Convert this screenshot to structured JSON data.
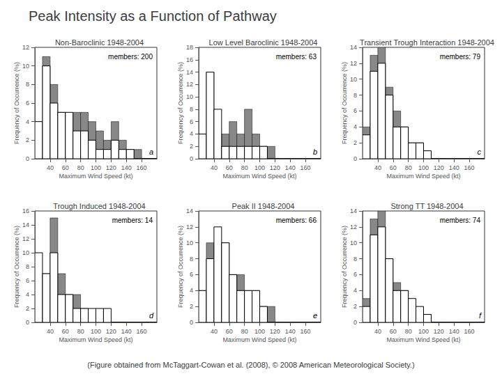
{
  "title": "Peak Intensity as a Function of Pathway",
  "caption": "(Figure obtained from McTaggart-Cowan et al. (2008), © 2008 American Meteorological Society.)",
  "chart_data": [
    {
      "type": "histogram",
      "subtitle": "Non-Baroclinic 1948-2004",
      "annotations": [
        "members: 200",
        "a"
      ],
      "xlabel": "Maximum Wind Speed (kt)",
      "ylabel": "Frequency of Occurrence (%)",
      "bins": [
        20,
        30,
        40,
        50,
        60,
        70,
        80,
        90,
        100,
        110,
        120,
        130,
        140,
        150,
        160,
        170,
        180
      ],
      "series": [
        {
          "color": "#888888",
          "values": [
            3,
            11,
            8,
            5,
            4,
            5,
            5,
            4,
            3,
            2,
            4,
            2,
            1,
            1,
            0,
            0
          ]
        },
        {
          "color": "#ffffff",
          "values": [
            4,
            10,
            6,
            5,
            5,
            3,
            3,
            2,
            1,
            1,
            2,
            1,
            1,
            0,
            0,
            0
          ]
        }
      ],
      "xlim": [
        20,
        180
      ],
      "xticks": [
        40,
        60,
        80,
        100,
        120,
        140,
        160
      ],
      "ylim": [
        0,
        12
      ],
      "yticks": [
        0,
        2,
        4,
        6,
        8,
        10,
        12
      ],
      "grid": false
    },
    {
      "type": "histogram",
      "subtitle": "Low Level Baroclinic 1948-2004",
      "annotations": [
        "members: 63",
        "b"
      ],
      "xlabel": "Maximum Wind Speed (kt)",
      "ylabel": "Frequency of Occurrence (%)",
      "bins": [
        20,
        30,
        40,
        50,
        60,
        70,
        80,
        90,
        100,
        110,
        120,
        130,
        140,
        150,
        160,
        170,
        180
      ],
      "series": [
        {
          "color": "#888888",
          "values": [
            3,
            14,
            4,
            4,
            6,
            4,
            8,
            4,
            2,
            2,
            0,
            0,
            0,
            0,
            0,
            0
          ]
        },
        {
          "color": "#ffffff",
          "values": [
            4,
            14,
            8,
            2,
            2,
            2,
            2,
            2,
            2,
            0,
            0,
            0,
            0,
            0,
            0,
            0
          ]
        }
      ],
      "xlim": [
        20,
        180
      ],
      "xticks": [
        40,
        60,
        80,
        100,
        120,
        140,
        160
      ],
      "ylim": [
        0,
        18
      ],
      "yticks": [
        0,
        2,
        4,
        6,
        8,
        10,
        12,
        14,
        16,
        18
      ],
      "grid": false
    },
    {
      "type": "histogram",
      "subtitle": "Transient Trough Interaction 1948-2004",
      "annotations": [
        "members: 79",
        "c"
      ],
      "xlabel": "Maximum Wind Speed (kt)",
      "ylabel": "Frequency of Occurrence (%)",
      "bins": [
        20,
        30,
        40,
        50,
        60,
        70,
        80,
        90,
        100,
        110,
        120,
        130,
        140,
        150,
        160,
        170,
        180
      ],
      "series": [
        {
          "color": "#888888",
          "values": [
            4,
            13,
            14,
            9,
            6,
            4,
            2,
            2,
            1,
            0,
            0,
            0,
            0,
            0,
            0,
            0
          ]
        },
        {
          "color": "#ffffff",
          "values": [
            3,
            11,
            12,
            8,
            4,
            4,
            2,
            2,
            1,
            0,
            0,
            0,
            0,
            0,
            0,
            0
          ]
        }
      ],
      "xlim": [
        20,
        180
      ],
      "xticks": [
        40,
        60,
        80,
        100,
        120,
        140,
        160
      ],
      "ylim": [
        0,
        14
      ],
      "yticks": [
        0,
        2,
        4,
        6,
        8,
        10,
        12,
        14
      ],
      "grid": false
    },
    {
      "type": "histogram",
      "subtitle": "Trough Induced 1948-2004",
      "annotations": [
        "members: 14",
        "d"
      ],
      "xlabel": "Maximum Wind Speed (kt)",
      "ylabel": "Frequency of Occurrence (%)",
      "bins": [
        20,
        30,
        40,
        50,
        60,
        70,
        80,
        90,
        100,
        110,
        120,
        130,
        140,
        150,
        160,
        170,
        180
      ],
      "series": [
        {
          "color": "#888888",
          "values": [
            6,
            7,
            15,
            7,
            4,
            4,
            2,
            0,
            0,
            0,
            0,
            0,
            0,
            0,
            0,
            0
          ]
        },
        {
          "color": "#ffffff",
          "values": [
            10,
            7,
            10,
            4,
            4,
            2,
            2,
            2,
            2,
            2,
            0,
            0,
            0,
            0,
            0,
            0
          ]
        }
      ],
      "xlim": [
        20,
        180
      ],
      "xticks": [
        40,
        60,
        80,
        100,
        120,
        140,
        160
      ],
      "ylim": [
        0,
        16
      ],
      "yticks": [
        0,
        2,
        4,
        6,
        8,
        10,
        12,
        14,
        16
      ],
      "grid": false
    },
    {
      "type": "histogram",
      "subtitle": "Peak II 1948-2004",
      "annotations": [
        "members: 66",
        "e"
      ],
      "xlabel": "Maximum Wind Speed (kt)",
      "ylabel": "Frequency of Occurrence (%)",
      "bins": [
        20,
        30,
        40,
        50,
        60,
        70,
        80,
        90,
        100,
        110,
        120,
        130,
        140,
        150,
        160,
        170,
        180
      ],
      "series": [
        {
          "color": "#888888",
          "values": [
            4,
            10,
            10,
            10,
            6,
            6,
            4,
            4,
            2,
            2,
            0,
            0,
            0,
            0,
            0,
            0
          ]
        },
        {
          "color": "#ffffff",
          "values": [
            4,
            8,
            12,
            10,
            6,
            4,
            4,
            4,
            2,
            0,
            0,
            0,
            0,
            0,
            0,
            0
          ]
        }
      ],
      "xlim": [
        20,
        180
      ],
      "xticks": [
        40,
        60,
        80,
        100,
        120,
        140,
        160
      ],
      "ylim": [
        0,
        14
      ],
      "yticks": [
        0,
        2,
        4,
        6,
        8,
        10,
        12,
        14
      ],
      "grid": false
    },
    {
      "type": "histogram",
      "subtitle": "Strong TT 1948-2004",
      "annotations": [
        "members: 74",
        "f"
      ],
      "xlabel": "Maximum Wind Speed (kt)",
      "ylabel": "Frequency of Occurrence (%)",
      "bins": [
        20,
        30,
        40,
        50,
        60,
        70,
        80,
        90,
        100,
        110,
        120,
        130,
        140,
        150,
        160,
        170,
        180
      ],
      "series": [
        {
          "color": "#888888",
          "values": [
            3,
            13,
            14,
            8,
            5,
            4,
            2,
            1,
            1,
            0,
            0,
            0,
            0,
            0,
            0,
            0
          ]
        },
        {
          "color": "#ffffff",
          "values": [
            2,
            11,
            12,
            8,
            4,
            4,
            3,
            2,
            1,
            0,
            0,
            0,
            0,
            0,
            0,
            0
          ]
        }
      ],
      "xlim": [
        20,
        180
      ],
      "xticks": [
        40,
        60,
        80,
        100,
        120,
        140,
        160
      ],
      "ylim": [
        0,
        14
      ],
      "yticks": [
        0,
        2,
        4,
        6,
        8,
        10,
        12,
        14
      ],
      "grid": false
    }
  ]
}
